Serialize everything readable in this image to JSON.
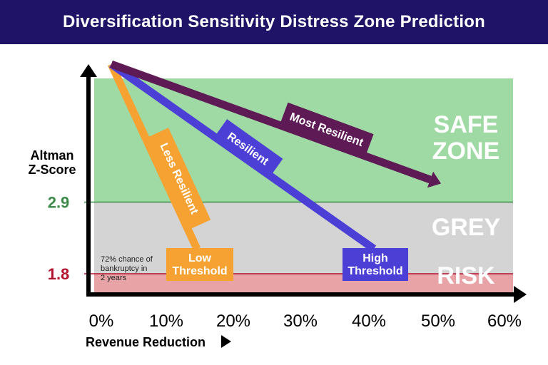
{
  "header": {
    "title": "Diversification Sensitivity Distress Zone Prediction"
  },
  "chart_data": {
    "type": "line",
    "title": "Diversification Sensitivity Distress Zone Prediction",
    "xlabel": "Revenue Reduction",
    "ylabel": "Altman Z-Score",
    "x_ticks": [
      "0%",
      "10%",
      "20%",
      "30%",
      "40%",
      "50%",
      "60%"
    ],
    "xlim": [
      0,
      60
    ],
    "y_ticks": [
      {
        "value": 1.8,
        "label": "1.8",
        "color": "#b3122e"
      },
      {
        "value": 2.9,
        "label": "2.9",
        "color": "#3d8b4a"
      }
    ],
    "ylim": [
      0.8,
      4.9
    ],
    "zones": [
      {
        "name": "SAFE\nZONE",
        "from": 2.9,
        "to": 4.8,
        "color": "#9fd9a3"
      },
      {
        "name": "GREY",
        "from": 1.8,
        "to": 2.9,
        "color": "#d4d4d4"
      },
      {
        "name": "RISK",
        "from": 0.9,
        "to": 1.8,
        "color": "#e8a3a6"
      }
    ],
    "series": [
      {
        "name": "Less Resilient",
        "color": "#f5a233",
        "x": [
          3,
          15
        ],
        "y": [
          4.8,
          1.8
        ]
      },
      {
        "name": "Resilient",
        "color": "#4b3fd6",
        "x": [
          3,
          41
        ],
        "y": [
          4.8,
          1.8
        ]
      },
      {
        "name": "Most Resilient",
        "color": "#5e1a55",
        "x": [
          3,
          52
        ],
        "y": [
          4.8,
          2.9
        ],
        "arrow": true
      }
    ],
    "threshold_labels": [
      {
        "text": "Low\nThreshold",
        "x": 16,
        "color": "#f5a233"
      },
      {
        "text": "High\nThreshold",
        "x": 43,
        "color": "#4b3fd6"
      }
    ],
    "annotations": [
      {
        "text": "72% chance of\nbankruptcy in\n2 years"
      }
    ]
  }
}
